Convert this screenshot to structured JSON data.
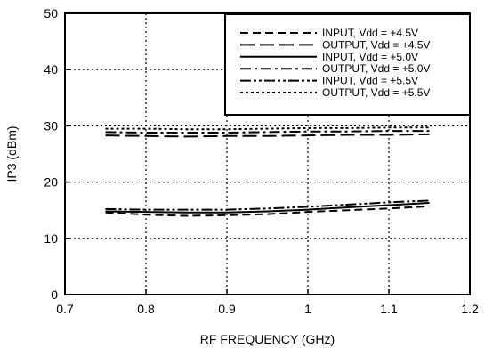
{
  "chart_data": {
    "type": "line",
    "xlabel": "RF FREQUENCY (GHz)",
    "ylabel": "IP3 (dBm)",
    "xlim": [
      0.7,
      1.2
    ],
    "ylim": [
      0,
      50
    ],
    "xticks": [
      "0.7",
      "0.8",
      "0.9",
      "1",
      "1.1",
      "1.2"
    ],
    "yticks": [
      "0",
      "10",
      "20",
      "30",
      "40",
      "50"
    ],
    "grid": true,
    "legend_position": "top-right",
    "x": [
      0.75,
      0.8,
      0.85,
      0.9,
      0.95,
      1.0,
      1.05,
      1.1,
      1.15
    ],
    "series": [
      {
        "name": "INPUT, Vdd = +4.5V",
        "dash": "short-dash",
        "values": [
          14.6,
          14.2,
          14.0,
          14.1,
          14.3,
          14.7,
          15.0,
          15.3,
          15.7
        ]
      },
      {
        "name": "OUTPUT, Vdd = +4.5V",
        "dash": "long-dash",
        "values": [
          28.3,
          28.2,
          28.1,
          28.2,
          28.2,
          28.3,
          28.4,
          28.4,
          28.5
        ]
      },
      {
        "name": "INPUT, Vdd = +5.0V",
        "dash": "solid",
        "values": [
          14.8,
          14.7,
          14.6,
          14.6,
          14.8,
          15.1,
          15.5,
          15.9,
          16.3
        ]
      },
      {
        "name": "OUTPUT, Vdd = +5.0V",
        "dash": "dash-dot",
        "values": [
          28.9,
          28.8,
          28.8,
          28.8,
          28.9,
          29.0,
          29.0,
          29.1,
          29.1
        ]
      },
      {
        "name": "INPUT, Vdd = +5.5V",
        "dash": "dash-dot-dot",
        "values": [
          15.2,
          15.1,
          15.1,
          15.1,
          15.3,
          15.6,
          16.0,
          16.4,
          16.7
        ]
      },
      {
        "name": "OUTPUT, Vdd = +5.5V",
        "dash": "dotted",
        "values": [
          29.5,
          29.5,
          29.4,
          29.4,
          29.5,
          29.6,
          29.6,
          29.7,
          29.7
        ]
      }
    ]
  }
}
